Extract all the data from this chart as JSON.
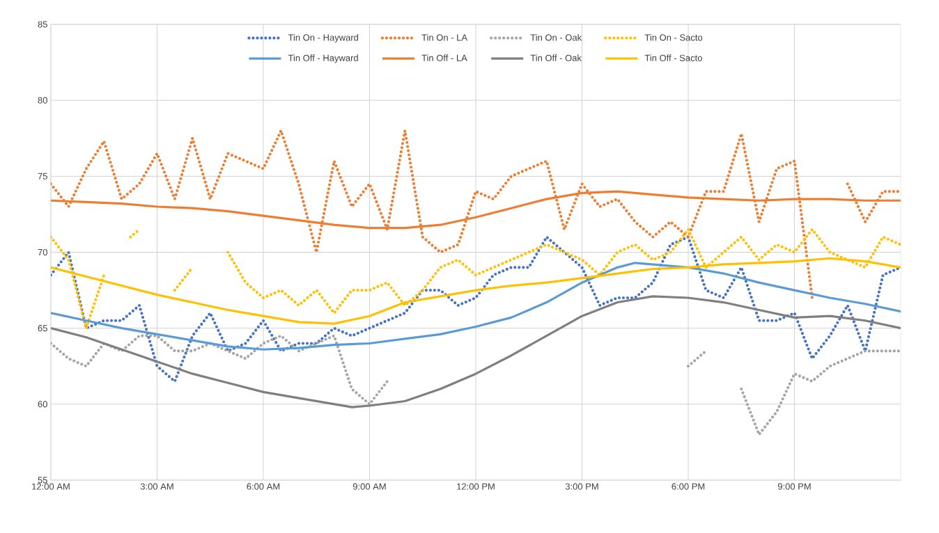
{
  "chart_data": {
    "type": "line",
    "xlim": [
      0,
      24
    ],
    "ylim": [
      55,
      85
    ],
    "xticks": [
      {
        "value": 0,
        "label": "12:00 AM"
      },
      {
        "value": 3,
        "label": "3:00 AM"
      },
      {
        "value": 6,
        "label": "6:00 AM"
      },
      {
        "value": 9,
        "label": "9:00 AM"
      },
      {
        "value": 12,
        "label": "12:00 PM"
      },
      {
        "value": 15,
        "label": "3:00 PM"
      },
      {
        "value": 18,
        "label": "6:00 PM"
      },
      {
        "value": 21,
        "label": "9:00 PM"
      }
    ],
    "yticks": [
      55,
      60,
      65,
      70,
      75,
      80,
      85
    ],
    "grid": true,
    "legend": "top",
    "marker": "none",
    "series": [
      {
        "name": "Tin On - Hayward",
        "color": "#4472c4",
        "line_style": "dotted",
        "x": [
          0,
          0.5,
          1,
          1.5,
          2,
          2.5,
          3,
          3.5,
          4,
          4.5,
          5,
          5.5,
          6,
          6.5,
          7,
          7.5,
          8,
          8.5,
          9,
          9.5,
          10,
          10.5,
          11,
          11.5,
          12,
          12.5,
          13,
          13.5,
          14,
          14.5,
          15,
          15.5,
          16,
          16.5,
          17,
          17.5,
          18,
          18.5,
          19,
          19.5,
          20,
          20.5,
          21,
          21.5,
          22,
          22.5,
          23,
          23.5,
          24
        ],
        "values": [
          68.5,
          70.0,
          65.0,
          65.5,
          65.5,
          66.5,
          62.5,
          61.5,
          64.5,
          66.0,
          63.5,
          64.0,
          65.5,
          63.5,
          64.0,
          64.0,
          65.0,
          64.5,
          65.0,
          65.5,
          66.0,
          67.5,
          67.5,
          66.5,
          67.0,
          68.5,
          69.0,
          69.0,
          71.0,
          70.0,
          69.0,
          66.5,
          67.0,
          67.0,
          68.0,
          70.5,
          71.0,
          67.5,
          67.0,
          69.0,
          65.5,
          65.5,
          66.0,
          63.0,
          64.5,
          66.5,
          63.5,
          68.5,
          69.0
        ]
      },
      {
        "name": "Tin On - LA",
        "color": "#ed7d31",
        "line_style": "dotted",
        "x": [
          0,
          0.5,
          1,
          1.5,
          2,
          2.5,
          3,
          3.5,
          4,
          4.5,
          5,
          5.5,
          6,
          6.5,
          7,
          7.5,
          8,
          8.5,
          9,
          9.5,
          10,
          10.5,
          11,
          11.5,
          12,
          12.5,
          13,
          13.5,
          14,
          14.5,
          15,
          15.5,
          16,
          16.5,
          17,
          17.5,
          18,
          18.5,
          19,
          19.5,
          20,
          20.5,
          21,
          21.5,
          22,
          22.5,
          23,
          23.5,
          24
        ],
        "values": [
          74.5,
          73.0,
          75.5,
          77.3,
          73.5,
          74.5,
          76.5,
          73.5,
          77.5,
          73.5,
          76.5,
          76.0,
          75.5,
          78.0,
          74.5,
          70.0,
          76.0,
          73.0,
          74.5,
          71.5,
          78.0,
          71.0,
          70.0,
          70.5,
          74.0,
          73.5,
          75.0,
          75.5,
          76.0,
          71.5,
          74.5,
          73.0,
          73.5,
          72.0,
          71.0,
          72.0,
          71.0,
          74.0,
          74.0,
          77.8,
          72.0,
          75.5,
          76.0,
          67.0,
          null,
          74.5,
          72.0,
          74.0,
          74.0
        ]
      },
      {
        "name": "Tin On - Oak",
        "color": "#a5a5a5",
        "line_style": "dotted",
        "x": [
          0,
          0.5,
          1,
          1.5,
          2,
          2.5,
          3,
          3.5,
          4,
          4.5,
          5,
          5.5,
          6,
          6.5,
          7,
          7.5,
          8,
          8.5,
          9,
          9.5,
          10,
          18,
          18.5,
          19,
          19.5,
          20,
          20.5,
          21,
          21.5,
          22,
          22.5,
          23,
          23.5,
          24
        ],
        "values": [
          64.0,
          63.0,
          62.5,
          64.0,
          63.5,
          64.5,
          64.5,
          63.5,
          63.5,
          64.0,
          63.5,
          63.0,
          64.0,
          64.5,
          63.5,
          64.0,
          64.5,
          61.0,
          60.0,
          61.5,
          null,
          62.5,
          63.5,
          null,
          61.0,
          58.0,
          59.5,
          62.0,
          61.5,
          62.5,
          63.0,
          63.5,
          63.5,
          63.5
        ]
      },
      {
        "name": "Tin On - Sacto",
        "color": "#ffc000",
        "line_style": "dotted",
        "x": [
          0,
          0.5,
          1,
          1.5,
          2,
          2.25,
          2.5,
          3,
          3.5,
          4,
          4.5,
          5,
          5.5,
          6,
          6.5,
          7,
          7.5,
          8,
          8.5,
          9,
          9.5,
          10,
          10.5,
          11,
          11.5,
          12,
          12.5,
          13,
          13.5,
          14,
          14.5,
          15,
          15.5,
          16,
          16.5,
          17,
          17.5,
          18,
          18.5,
          19,
          19.5,
          20,
          20.5,
          21,
          21.5,
          22,
          22.5,
          23,
          23.5,
          24
        ],
        "values": [
          71.0,
          69.5,
          65.0,
          68.5,
          null,
          71.0,
          71.5,
          null,
          67.5,
          69.0,
          null,
          70.0,
          68.0,
          67.0,
          67.5,
          66.5,
          67.5,
          66.0,
          67.5,
          67.5,
          68.0,
          66.5,
          67.5,
          69.0,
          69.5,
          68.5,
          69.0,
          69.5,
          70.0,
          70.5,
          70.0,
          69.5,
          68.5,
          70.0,
          70.5,
          69.5,
          70.0,
          71.5,
          69.0,
          70.0,
          71.0,
          69.5,
          70.5,
          70.0,
          71.5,
          70.0,
          69.5,
          69.0,
          71.0,
          70.5
        ]
      },
      {
        "name": "Tin Off - Hayward",
        "color": "#5b9bd5",
        "line_style": "solid",
        "x": [
          0,
          1,
          2,
          3,
          4,
          5,
          6,
          7,
          8,
          9,
          10,
          11,
          12,
          13,
          14,
          15,
          16,
          16.5,
          17,
          18,
          19,
          20,
          21,
          22,
          23,
          24
        ],
        "values": [
          66.0,
          65.5,
          65.0,
          64.6,
          64.2,
          63.8,
          63.6,
          63.7,
          63.9,
          64.0,
          64.3,
          64.6,
          65.1,
          65.7,
          66.7,
          68.0,
          69.0,
          69.3,
          69.2,
          69.0,
          68.6,
          68.0,
          67.5,
          67.0,
          66.6,
          66.1
        ]
      },
      {
        "name": "Tin Off - LA",
        "color": "#ed7d31",
        "line_style": "solid",
        "x": [
          0,
          1,
          2,
          3,
          4,
          5,
          6,
          7,
          8,
          9,
          10,
          11,
          12,
          13,
          14,
          15,
          16,
          17,
          18,
          19,
          20,
          21,
          22,
          23,
          24
        ],
        "values": [
          73.4,
          73.3,
          73.2,
          73.0,
          72.9,
          72.7,
          72.4,
          72.1,
          71.8,
          71.6,
          71.6,
          71.8,
          72.3,
          72.9,
          73.5,
          73.9,
          74.0,
          73.8,
          73.6,
          73.5,
          73.4,
          73.5,
          73.5,
          73.4,
          73.4
        ]
      },
      {
        "name": "Tin Off - Oak",
        "color": "#7f7f7f",
        "line_style": "solid",
        "x": [
          0,
          1,
          2,
          3,
          4,
          5,
          6,
          7,
          8,
          8.5,
          9,
          10,
          11,
          12,
          13,
          14,
          15,
          16,
          17,
          18,
          19,
          20,
          21,
          22,
          23,
          24
        ],
        "values": [
          65.0,
          64.4,
          63.6,
          62.8,
          62.0,
          61.4,
          60.8,
          60.4,
          60.0,
          59.8,
          59.9,
          60.2,
          61.0,
          62.0,
          63.2,
          64.5,
          65.8,
          66.7,
          67.1,
          67.0,
          66.7,
          66.2,
          65.7,
          65.8,
          65.5,
          65.0
        ]
      },
      {
        "name": "Tin Off - Sacto",
        "color": "#ffc000",
        "line_style": "solid",
        "x": [
          0,
          1,
          2,
          3,
          4,
          5,
          6,
          7,
          8,
          9,
          10,
          11,
          12,
          13,
          14,
          15,
          16,
          17,
          18,
          19,
          20,
          21,
          22,
          23,
          24
        ],
        "values": [
          69.0,
          68.4,
          67.8,
          67.2,
          66.7,
          66.2,
          65.8,
          65.4,
          65.3,
          65.8,
          66.7,
          67.1,
          67.5,
          67.8,
          68.0,
          68.3,
          68.6,
          68.9,
          69.0,
          69.2,
          69.3,
          69.4,
          69.6,
          69.4,
          69.0
        ]
      }
    ]
  }
}
